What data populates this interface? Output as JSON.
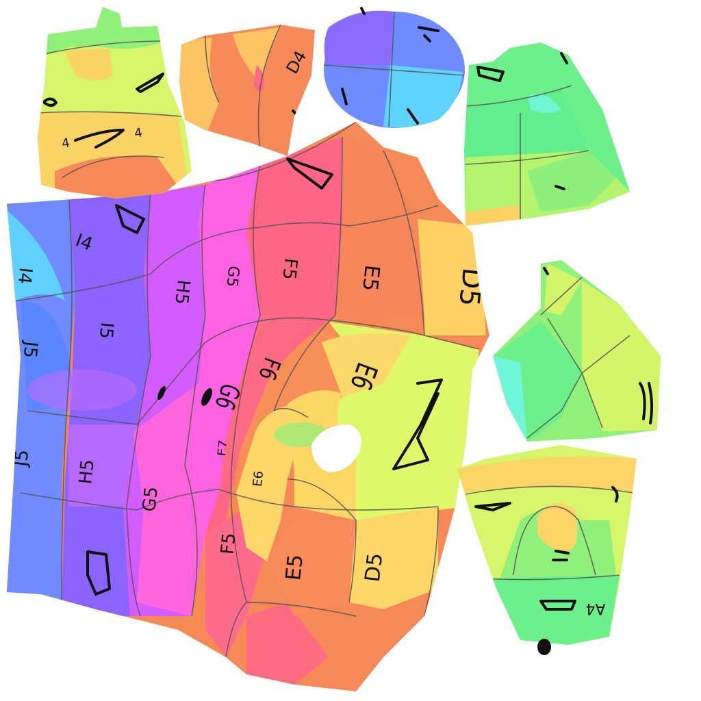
{
  "texture": {
    "labels": {
      "i4": "I4",
      "i4b": "I4",
      "h5": "H5",
      "g5": "G5",
      "f5": "F5",
      "e5": "E5",
      "d5": "D5",
      "j5": "J5",
      "i5": "I5",
      "g6": "G6",
      "f6": "F6",
      "e6": "E6",
      "j5m": "J5",
      "h5m": "H5",
      "g5m": "G5",
      "f7m": "F7",
      "e6m": "E6",
      "f5m": "F5",
      "e5m": "E5",
      "d5m": "D5",
      "d4top": "D4",
      "fourA": "4",
      "fourB": "4",
      "a4m": "A4"
    }
  }
}
